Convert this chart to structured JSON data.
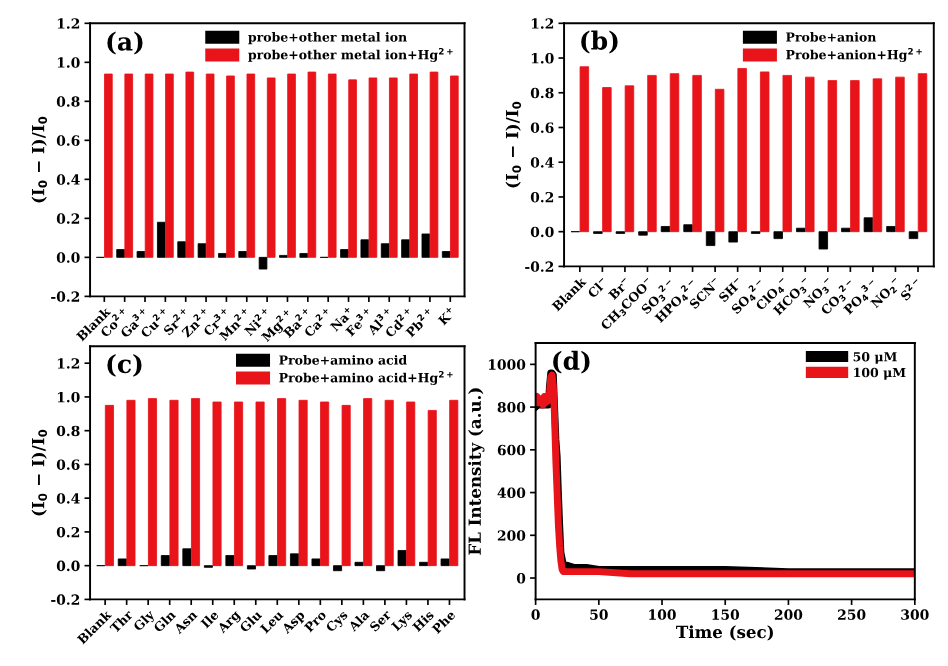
{
  "chart_data": [
    {
      "type": "bar",
      "title": "(a)",
      "ylabel": "(I$_{0}$ − I)/I$_{0}$",
      "legend": "top right",
      "ylim": [
        -0.2,
        1.2
      ],
      "yticks": [
        {
          "value": -0.2,
          "label": "-0.2"
        },
        {
          "value": 0,
          "label": "0.0"
        },
        0.2,
        0.4,
        0.6,
        0.8,
        {
          "value": 1,
          "label": "1.0"
        },
        1.2
      ],
      "categories": [
        "Blank",
        "Co$^{2+}$",
        "Ga$^{3+}$",
        "Cu$^{2+}$",
        "Sr$^{2+}$",
        "Zn$^{2+}$",
        "Cr$^{3+}$",
        "Mn$^{2+}$",
        "Ni$^{2+}$",
        "Mg$^{2+}$",
        "Ba$^{2+}$",
        "Ca$^{2+}$",
        "Na$^{+}$",
        "Fe$^{3+}$",
        "Al$^{3+}$",
        "Cd$^{2+}$",
        "Pb$^{2+}$",
        "K$^{+}$"
      ],
      "series": [
        {
          "name": "probe+other metal ion",
          "color": "#000000",
          "values": [
            0,
            0.04,
            0.03,
            0.18,
            0.08,
            0.07,
            0.02,
            0.03,
            -0.06,
            0.01,
            0.02,
            0.0,
            0.04,
            0.09,
            0.07,
            0.09,
            0.12,
            0.03
          ]
        },
        {
          "name": "probe+other metal ion+Hg$^{2+}$",
          "color": "#e8141a",
          "values": [
            0.94,
            0.94,
            0.94,
            0.94,
            0.95,
            0.94,
            0.93,
            0.94,
            0.92,
            0.94,
            0.95,
            0.94,
            0.91,
            0.92,
            0.92,
            0.94,
            0.95,
            0.93
          ]
        }
      ]
    },
    {
      "type": "bar",
      "title": "(b)",
      "ylabel": "(I$_{0}$ − I)/I$_{0}$",
      "legend": "top right",
      "ylim": [
        -0.2,
        1.2
      ],
      "yticks": [
        {
          "value": -0.2,
          "label": "-0.2"
        },
        {
          "value": 0,
          "label": "0.0"
        },
        0.2,
        0.4,
        0.6,
        0.8,
        {
          "value": 1,
          "label": "1.0"
        },
        1.2
      ],
      "categories": [
        "Blank",
        "Cl$^{−}$",
        "Br$^{−}$",
        "CH$_{3}$COO$^{−}$",
        "SO$_{3}$$^{2−}$",
        "HPO$_{4}$$^{2−}$",
        "SCN$^{−}$",
        "SH$^{−}$",
        "SO$_{4}$$^{2−}$",
        "ClO$_{4}$$^{−}$",
        "HCO$_{3}$$^{−}$",
        "NO$_{3}$$^{−}$",
        "CO$_{3}$$^{2−}$",
        "PO$_{4}$$^{3−}$",
        "NO$_{2}$$^{−}$",
        "S$^{2−}$"
      ],
      "series": [
        {
          "name": "Probe+anion",
          "color": "#000000",
          "values": [
            0,
            -0.01,
            -0.01,
            -0.02,
            0.03,
            0.04,
            -0.08,
            -0.06,
            -0.01,
            -0.04,
            0.02,
            -0.1,
            0.02,
            0.08,
            0.03,
            -0.04
          ]
        },
        {
          "name": "Probe+anion+Hg$^{2+}$",
          "color": "#e8141a",
          "values": [
            0.95,
            0.83,
            0.84,
            0.9,
            0.91,
            0.9,
            0.82,
            0.94,
            0.92,
            0.9,
            0.89,
            0.87,
            0.87,
            0.88,
            0.89,
            0.91
          ]
        }
      ]
    },
    {
      "type": "bar",
      "title": "(c)",
      "ylabel": "(I$_{0}$ − I)/I$_{0}$",
      "legend": "top right",
      "ylim": [
        -0.2,
        1.3
      ],
      "yticks": [
        {
          "value": -0.2,
          "label": "-0.2"
        },
        {
          "value": 0,
          "label": "0.0"
        },
        0.2,
        0.4,
        0.6,
        0.8,
        {
          "value": 1,
          "label": "1.0"
        },
        1.2
      ],
      "categories": [
        "Blank",
        "Thr",
        "Gly",
        "Gln",
        "Asn",
        "Ile",
        "Arg",
        "Glu",
        "Leu",
        "Asp",
        "Pro",
        "Cys",
        "Ala",
        "Ser",
        "Lys",
        "His",
        "Phe"
      ],
      "series": [
        {
          "name": "Probe+amino acid",
          "color": "#000000",
          "values": [
            0,
            0.04,
            0,
            0.06,
            0.1,
            -0.01,
            0.06,
            -0.02,
            0.06,
            0.07,
            0.04,
            -0.03,
            0.02,
            -0.03,
            0.09,
            0.02,
            0.04
          ]
        },
        {
          "name": "Probe+amino acid+Hg$^{2+}$",
          "color": "#e8141a",
          "values": [
            0.95,
            0.98,
            0.99,
            0.98,
            0.99,
            0.97,
            0.97,
            0.97,
            0.99,
            0.98,
            0.97,
            0.95,
            0.99,
            0.98,
            0.97,
            0.92,
            0.98
          ]
        }
      ]
    },
    {
      "type": "line",
      "title": "(d)",
      "xlabel": "Time (sec)",
      "ylabel": "FL Intensity (a.u.)",
      "legend": "top right",
      "line_style": "solid",
      "xlim": [
        0,
        300
      ],
      "xticks": [
        0,
        50,
        100,
        150,
        200,
        250,
        300
      ],
      "ylim": [
        -100,
        1100
      ],
      "yticks": [
        0,
        200,
        400,
        600,
        800,
        1000
      ],
      "series": [
        {
          "name": "50 μM",
          "color": "#000000",
          "x": [
            0,
            2,
            4,
            6,
            8,
            10,
            11,
            12,
            13,
            14,
            15,
            16,
            17,
            18,
            19,
            20,
            22,
            25,
            30,
            40,
            50,
            75,
            100,
            150,
            200,
            250,
            300
          ],
          "values": [
            800,
            810,
            810,
            810,
            810,
            810,
            900,
            960,
            960,
            950,
            800,
            650,
            570,
            400,
            250,
            120,
            60,
            60,
            50,
            50,
            40,
            40,
            40,
            40,
            30,
            30,
            30
          ]
        },
        {
          "name": "100 μM",
          "color": "#e8141a",
          "x": [
            0,
            1,
            2,
            3,
            4,
            5,
            6,
            7,
            8,
            9,
            10,
            11,
            12,
            13,
            14,
            15,
            16,
            17,
            18,
            19,
            20,
            21,
            22,
            25,
            30,
            40,
            50,
            75,
            100,
            150,
            200,
            250,
            300
          ],
          "values": [
            830,
            850,
            820,
            840,
            820,
            840,
            810,
            850,
            820,
            840,
            830,
            870,
            940,
            950,
            900,
            750,
            550,
            400,
            250,
            150,
            80,
            40,
            30,
            30,
            30,
            30,
            30,
            20,
            20,
            20,
            20,
            20,
            20
          ]
        }
      ]
    }
  ]
}
